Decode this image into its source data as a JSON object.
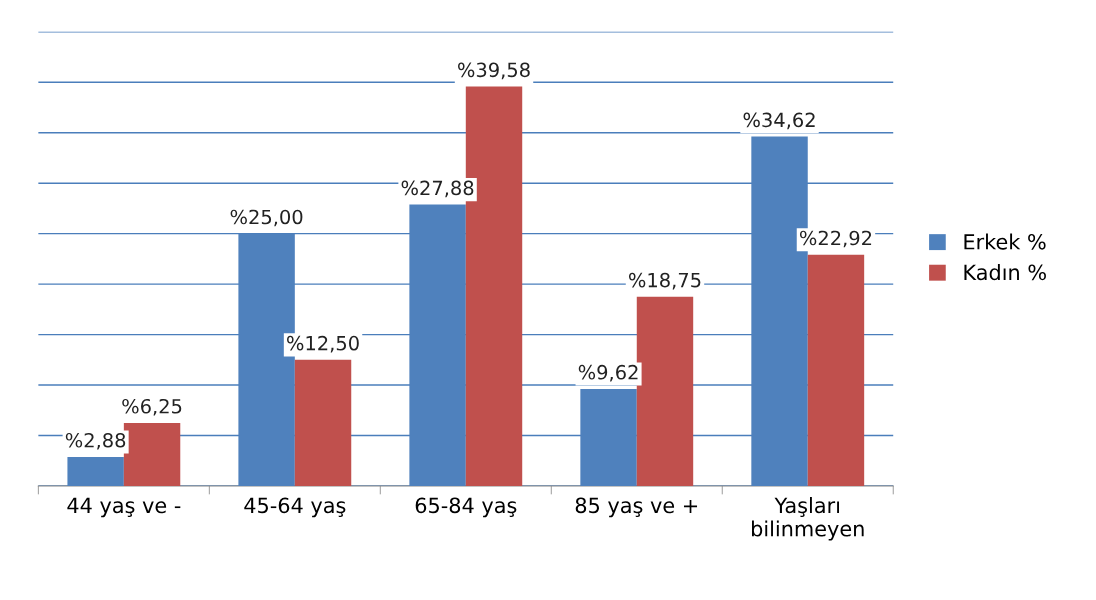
{
  "chart_data": {
    "type": "bar",
    "categories": [
      "44 yaş ve -",
      "45-64 yaş",
      "65-84 yaş",
      "85 yaş ve +",
      "Yaşları\nbilinmeyen"
    ],
    "series": [
      {
        "name": "Erkek %",
        "color": "#4f81bd",
        "values": [
          2.88,
          25.0,
          27.88,
          9.62,
          34.62
        ],
        "value_labels": [
          "%2,88",
          "%25,00",
          "%27,88",
          "%9,62",
          "%34,62"
        ]
      },
      {
        "name": "Kadın %",
        "color": "#c0504d",
        "values": [
          6.25,
          12.5,
          39.58,
          18.75,
          22.92
        ],
        "value_labels": [
          "%6,25",
          "%12,50",
          "%39,58",
          "%18,75",
          "%22,92"
        ]
      }
    ],
    "ylim": [
      0,
      45
    ],
    "yticks": [
      {
        "value": 0,
        "label": null
      },
      {
        "value": 5,
        "label": null
      },
      {
        "value": 10,
        "label": null
      },
      {
        "value": 15,
        "label": null
      },
      {
        "value": 20,
        "label": null
      },
      {
        "value": 25,
        "label": null
      },
      {
        "value": 30,
        "label": null
      },
      {
        "value": 35,
        "label": null
      },
      {
        "value": 40,
        "label": null
      },
      {
        "value": 45,
        "label": null
      }
    ],
    "tick_labels": "x",
    "grid": "y",
    "legend": "right"
  }
}
